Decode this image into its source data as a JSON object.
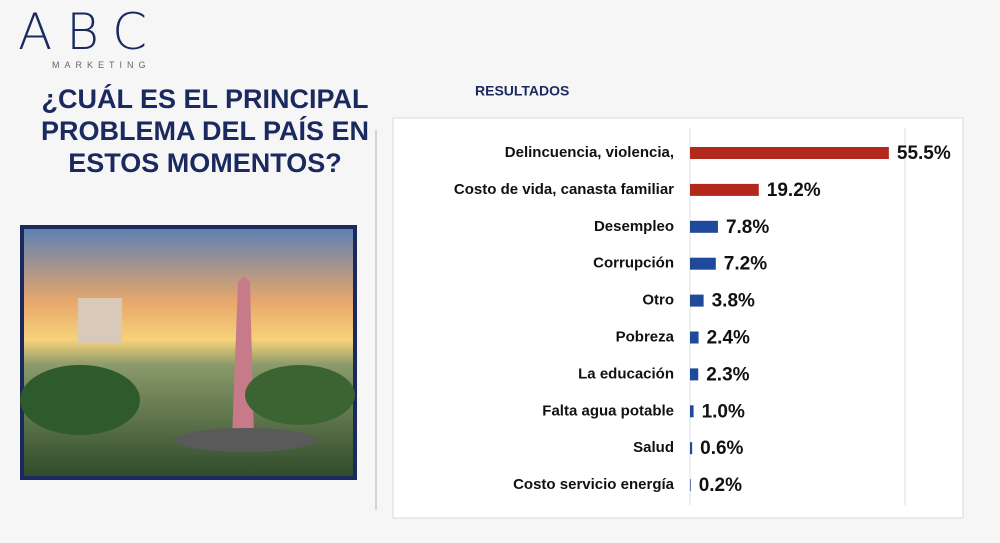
{
  "logo": {
    "text": "ABC",
    "tagline": "MARKETING"
  },
  "chart_data": {
    "type": "bar",
    "orientation": "horizontal",
    "title": "¿CUÁL ES EL PRINCIPAL PROBLEMA DEL PAÍS EN ESTOS MOMENTOS?",
    "subtitle": "RESULTADOS",
    "categories": [
      "Delincuencia, violencia,",
      "Costo de vida, canasta familiar",
      "Desempleo",
      "Corrupción",
      "Otro",
      "Pobreza",
      "La educación",
      "Falta agua potable",
      "Salud",
      "Costo servicio energía"
    ],
    "values": [
      55.5,
      19.2,
      7.8,
      7.2,
      3.8,
      2.4,
      2.3,
      1.0,
      0.6,
      0.2
    ],
    "value_labels": [
      "55.5%",
      "19.2%",
      "7.8%",
      "7.2%",
      "3.8%",
      "2.4%",
      "2.3%",
      "1.0%",
      "0.6%",
      "0.2%"
    ],
    "colors": [
      "#b3281d",
      "#b3281d",
      "#1f4a9c",
      "#1f4a9c",
      "#1f4a9c",
      "#1f4a9c",
      "#1f4a9c",
      "#1f4a9c",
      "#1f4a9c",
      "#1f4a9c"
    ],
    "xlim": [
      0,
      60
    ],
    "grid": true
  }
}
